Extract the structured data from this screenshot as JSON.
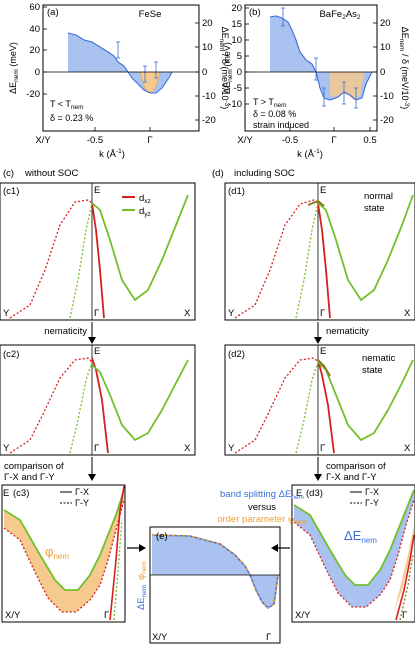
{
  "figure": {
    "top": {
      "a": {
        "panel_label": "(a)",
        "material": "FeSe",
        "cond1": "T < T",
        "cond1_sub": "nem",
        "cond2": "δ = 0.23 %",
        "ylabel_left": "ΔE",
        "ylabel_left_sub": "nem",
        "ylabel_left_unit": " (meV)",
        "ylabel_right": "ΔE",
        "ylabel_right_sub": "nem",
        "ylabel_right_unit": " / δ  (meV/10",
        "ylabel_right_exp": "-3",
        "ylabel_right_close": ")",
        "left_ticks": [
          "60",
          "40",
          "20",
          "0",
          "-20"
        ],
        "right_ticks": [
          "20",
          "10",
          "0",
          "-10",
          "-20"
        ],
        "x_ticks": [
          "X/Y",
          "-0.5",
          "Γ"
        ],
        "xlabel": "k (Å",
        "xlabel_exp": "-1",
        "xlabel_close": ")"
      },
      "b": {
        "panel_label": "(b)",
        "material": "BaFe",
        "material_sub1": "2",
        "material_mid": "As",
        "material_sub2": "2",
        "cond1": "T > T",
        "cond1_sub": "nem",
        "cond2": "δ = 0.08 %",
        "cond3": "strain induced",
        "ylabel_left": "ΔE",
        "ylabel_left_sub": "nem",
        "ylabel_left_unit": " (meV)",
        "ylabel_right": "ΔE",
        "ylabel_right_sub": "nem",
        "ylabel_right_unit": " / δ  (meV/10",
        "ylabel_right_exp": "-3",
        "ylabel_right_close": ")",
        "left_ticks": [
          "20",
          "15",
          "10",
          "5",
          "0",
          "-5",
          "-10"
        ],
        "right_ticks": [
          "20",
          "10",
          "0",
          "-10",
          "-20"
        ],
        "x_ticks": [
          "X/Y",
          "-0.5",
          "Γ",
          "0.5"
        ],
        "xlabel": "k (Å",
        "xlabel_exp": "-1",
        "xlabel_close": ")"
      }
    },
    "c_col": {
      "header_label": "(c)",
      "header_text": "without SOC",
      "c1": "(c1)",
      "c2": "(c2)",
      "c3": "(c3)",
      "legend_dxz": "d",
      "legend_dxz_sub": "xz",
      "legend_dyz": "d",
      "legend_dyz_sub": "yz",
      "arrow1_text": "nematicity",
      "arrow2_text_1": "comparison of",
      "arrow2_text_2": "Γ-X and Γ-Y",
      "phi_label": "φ",
      "phi_sub": "nem",
      "legend_solid": "Γ-X",
      "legend_dotted": "Γ-Y"
    },
    "d_col": {
      "header_label": "(d)",
      "header_text": "including SOC",
      "d1": "(d1)",
      "d2": "(d2)",
      "d3": "(d3)",
      "d1_note1": "normal",
      "d1_note2": "state",
      "d2_note1": "nematic",
      "d2_note2": "state",
      "arrow1_text": "nematicity",
      "arrow2_text_1": "comparison of",
      "arrow2_text_2": "Γ-X and Γ-Y",
      "delta_label": "ΔE",
      "delta_sub": "nem",
      "legend_solid": "Γ-X",
      "legend_dotted": "Γ-Y"
    },
    "band_labels": {
      "E": "E",
      "Y": "Y",
      "X": "X",
      "Gamma": "Γ",
      "XY": "X/Y"
    },
    "e_panel": {
      "panel_label": "(e)",
      "title1": "band splitting ΔE",
      "title1_sub": "nem",
      "title2": "versus",
      "title3": "order parameter φ",
      "title3_sub": "nem",
      "ylabel_a": "ΔE",
      "ylabel_a_sub": "nem",
      "ylabel_b": "φ",
      "ylabel_b_sub": "nem",
      "x_left": "X/Y",
      "x_right": "Γ"
    },
    "colors": {
      "blue_fill": "#a9c2ef",
      "blue_line": "#3b6fd8",
      "orange_fill": "#f6c98e",
      "orange_line": "#f0a030",
      "red": "#d42020",
      "green": "#72c02c",
      "olive": "#8a7a20"
    }
  }
}
